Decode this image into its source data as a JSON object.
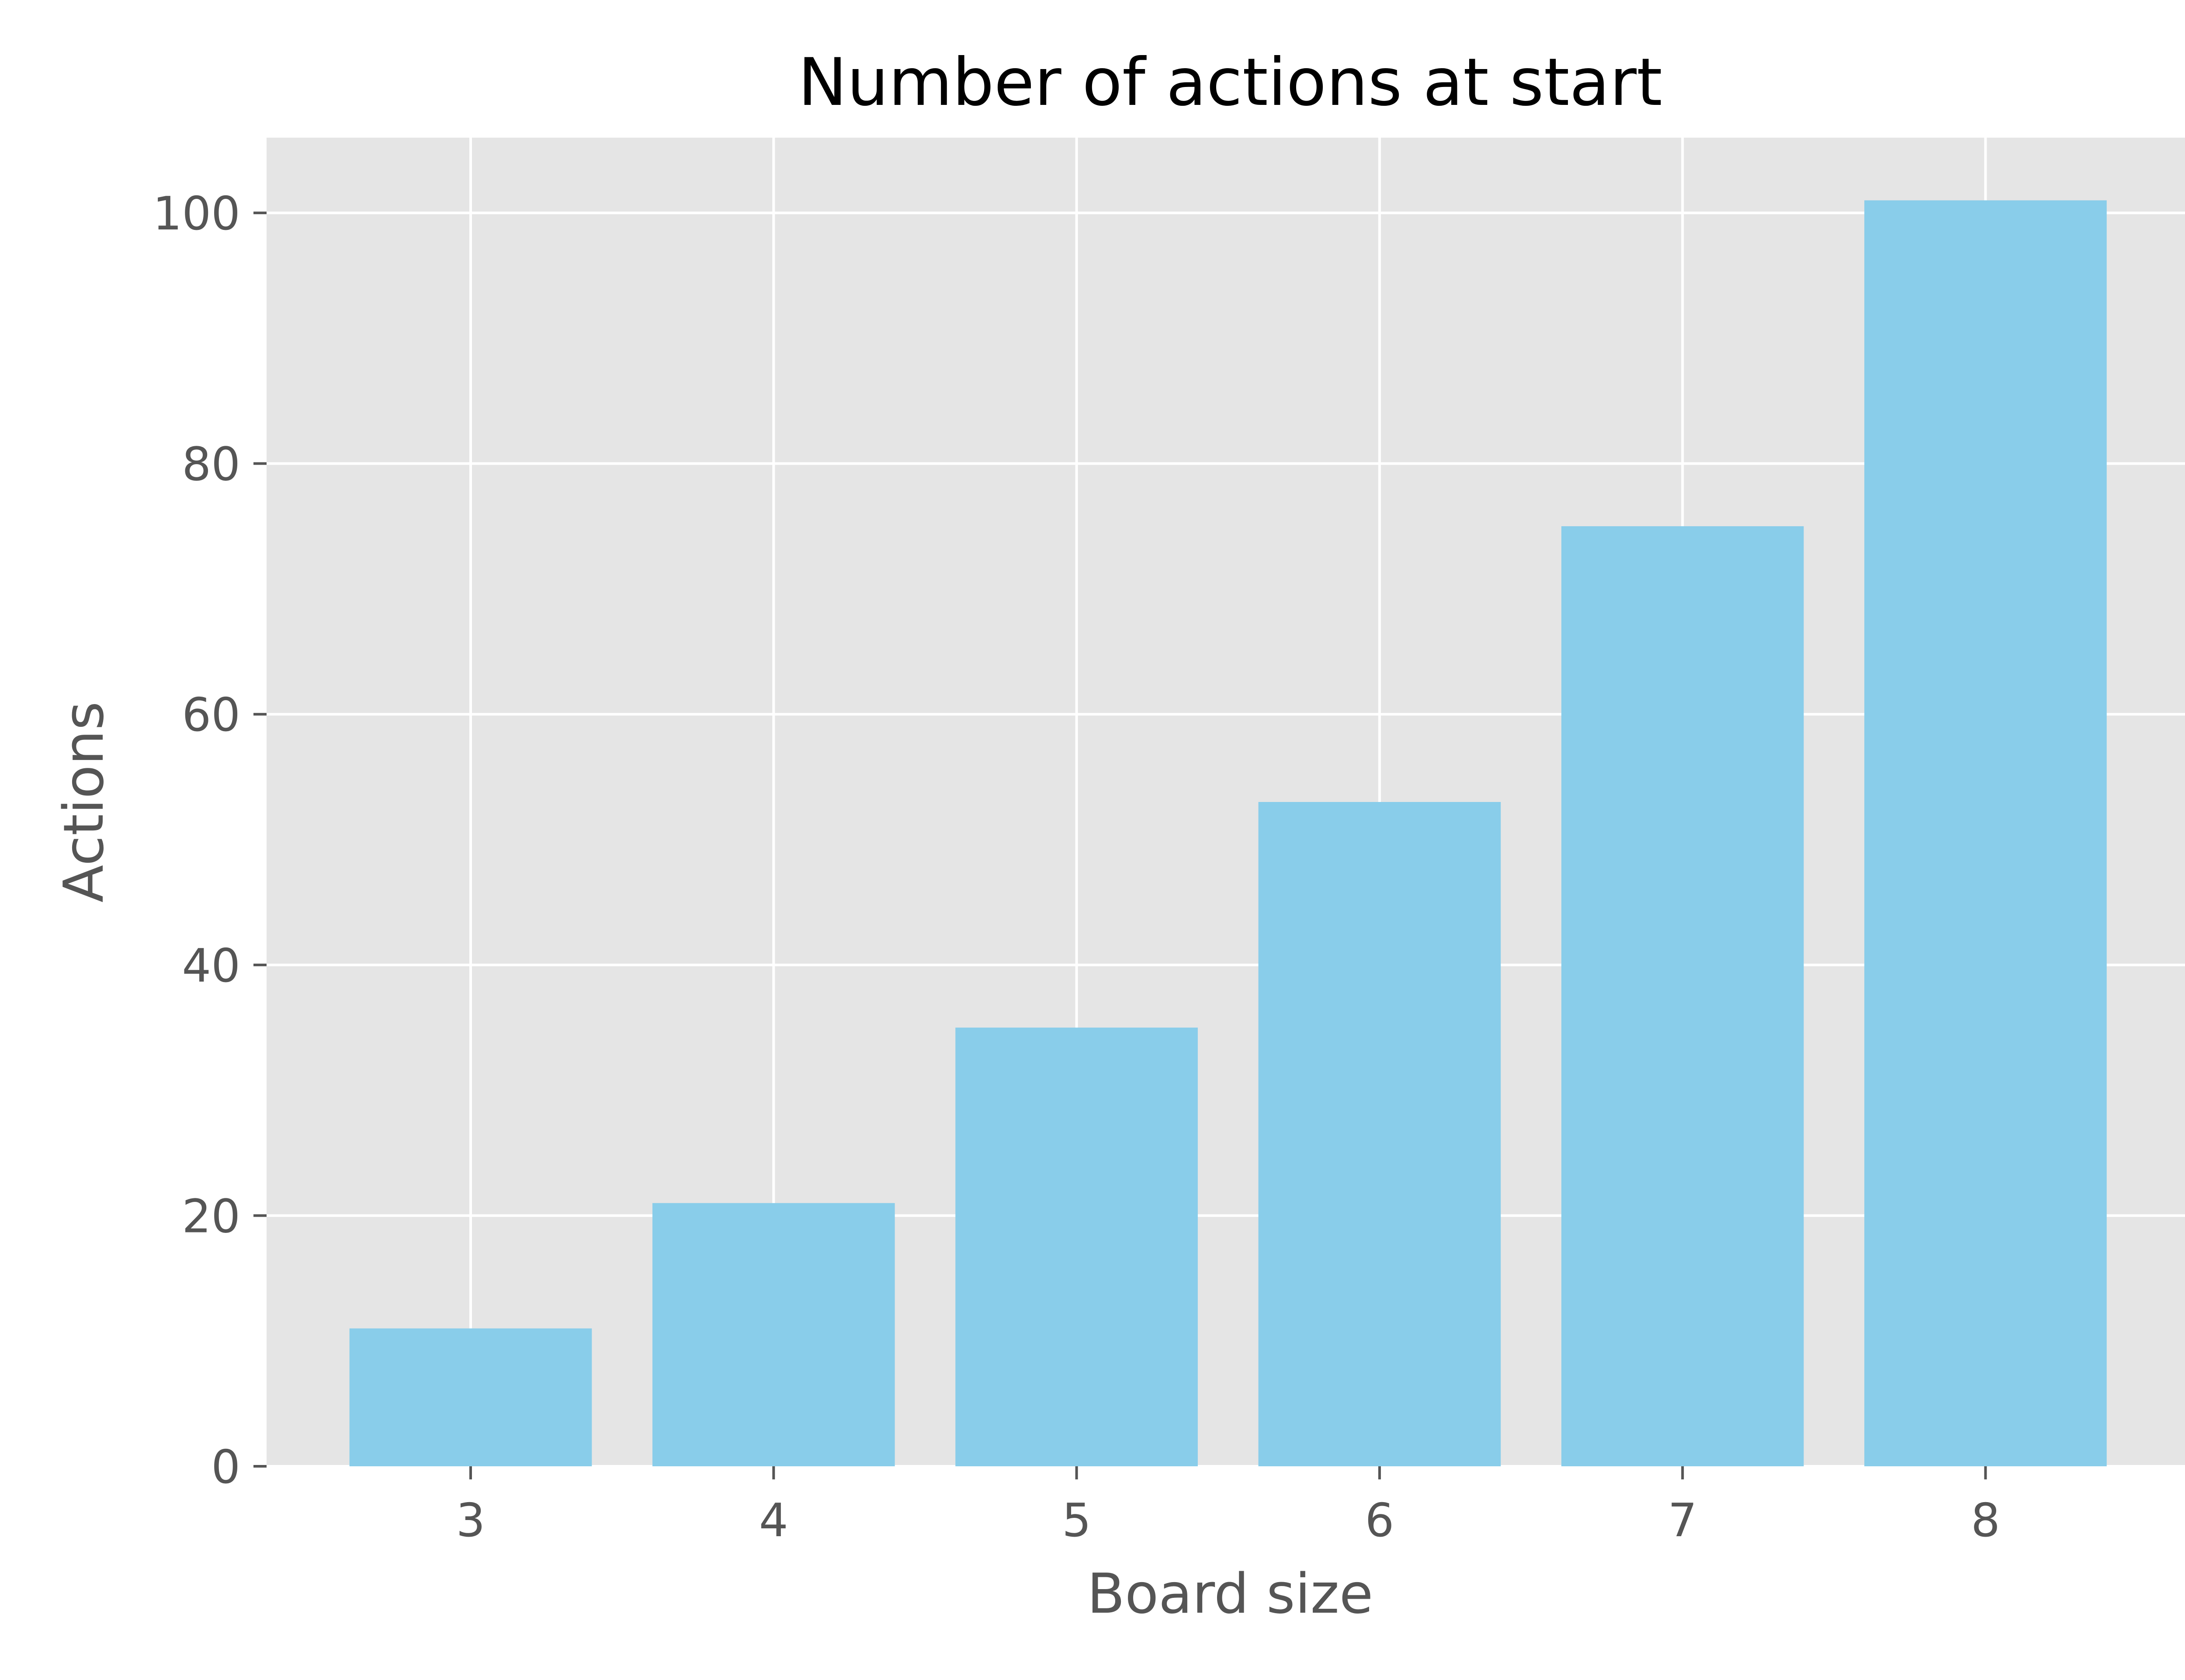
{
  "chart_data": {
    "type": "bar",
    "title": "Number of actions at start",
    "xlabel": "Board size",
    "ylabel": "Actions",
    "categories": [
      "3",
      "4",
      "5",
      "6",
      "7",
      "8"
    ],
    "values": [
      11,
      21,
      35,
      53,
      75,
      101
    ],
    "ylim": [
      0,
      106
    ],
    "yticks": [
      "0",
      "20",
      "40",
      "60",
      "80",
      "100"
    ],
    "grid": true,
    "legend": "none",
    "colors": {
      "bar": "#89CDEA",
      "plot_background": "#E5E5E5",
      "grid": "#FFFFFF",
      "tick_text": "#555555",
      "title_text": "#000000"
    }
  }
}
